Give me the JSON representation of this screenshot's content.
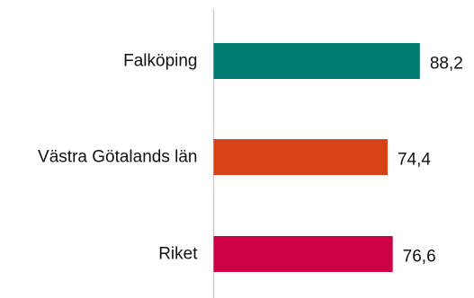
{
  "chart_data": {
    "type": "bar",
    "orientation": "horizontal",
    "categories": [
      "Falköping",
      "Västra Götalands län",
      "Riket"
    ],
    "values": [
      88.2,
      74.4,
      76.6
    ],
    "value_labels": [
      "88,2",
      "74,4",
      "76,6"
    ],
    "colors": [
      "#007a6e",
      "#d84315",
      "#cc0044"
    ],
    "axis_color": "#d0d0d0",
    "xlim": [
      0,
      100
    ],
    "grid": false,
    "legend": "none"
  }
}
